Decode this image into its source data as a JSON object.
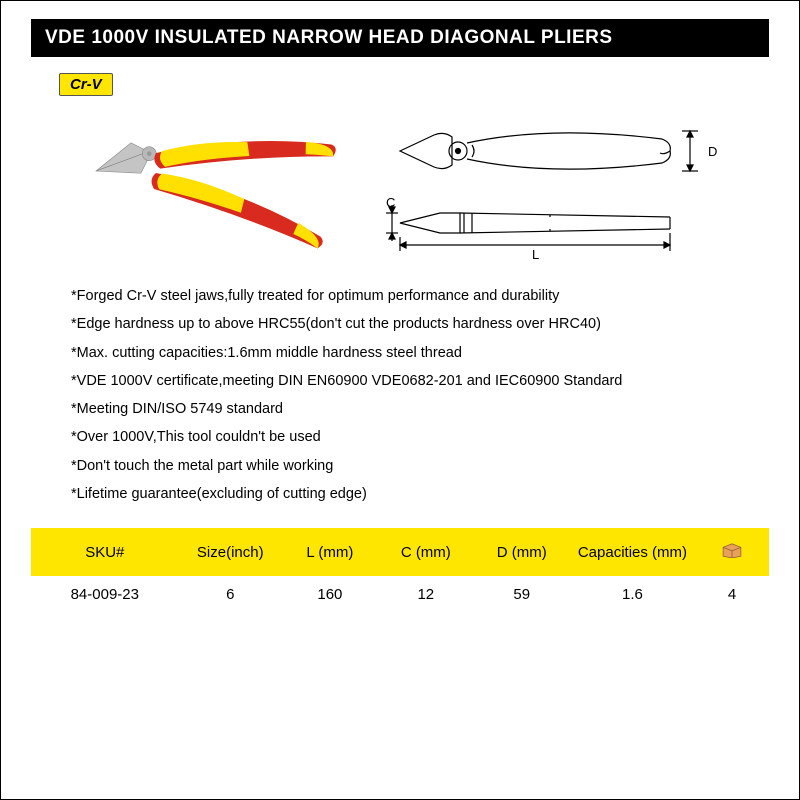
{
  "title": "VDE 1000V INSULATED NARROW HEAD DIAGONAL PLIERS",
  "badge": "Cr-V",
  "colors": {
    "title_bg": "#000000",
    "title_text": "#ffffff",
    "badge_bg": "#ffe600",
    "table_header_bg": "#ffe600",
    "handle_red": "#d82a1f",
    "handle_yellow": "#ffe000",
    "metal": "#c8c8c8",
    "diagram_stroke": "#000000"
  },
  "photo": {
    "description": "diagonal pliers with red and yellow insulated handles",
    "handle_red": "#d82a1f",
    "handle_yellow": "#ffe000",
    "metal": "#bfbfbf"
  },
  "diagram": {
    "labels": {
      "L": "L",
      "C": "C",
      "D": "D"
    },
    "stroke": "#000000",
    "stroke_width": 1.2
  },
  "features": [
    "*Forged Cr-V steel jaws,fully treated for optimum performance and durability",
    "*Edge hardness up to above HRC55(don't cut the products hardness over HRC40)",
    "*Max. cutting capacities:1.6mm middle hardness steel thread",
    "*VDE 1000V certificate,meeting DIN EN60900 VDE0682-201 and IEC60900 Standard",
    "*Meeting DIN/ISO 5749 standard",
    "*Over 1000V,This tool couldn't be used",
    "*Don't touch the metal part while working",
    "*Lifetime guarantee(excluding of cutting edge)"
  ],
  "table": {
    "columns": [
      "SKU#",
      "Size(inch)",
      "L (mm)",
      "C (mm)",
      "D (mm)",
      "Capacities (mm)",
      ""
    ],
    "col_widths": [
      "20%",
      "14%",
      "13%",
      "13%",
      "13%",
      "17%",
      "10%"
    ],
    "rows": [
      [
        "84-009-23",
        "6",
        "160",
        "12",
        "59",
        "1.6",
        "4"
      ]
    ],
    "icon_col": 6,
    "icon_name": "box-icon"
  }
}
